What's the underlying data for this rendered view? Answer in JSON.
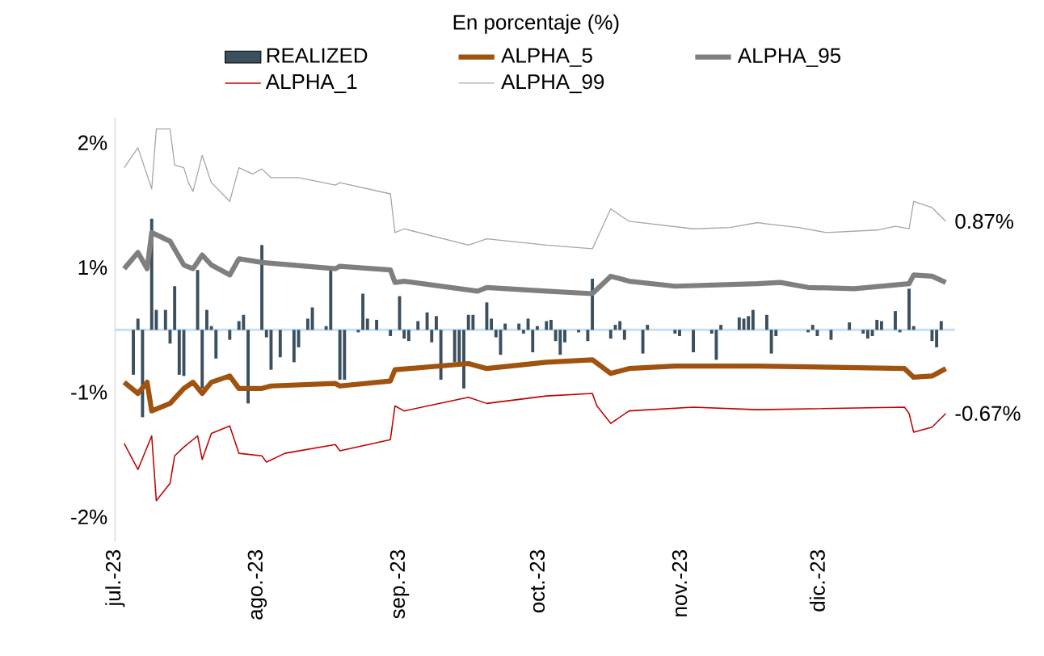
{
  "chart_data": {
    "type": "line",
    "title": "En porcentaje (%)",
    "xlim": [
      "2023-07-01",
      "2023-12-31"
    ],
    "xticks": [
      {
        "value": "2023-07-01",
        "label": "jul.-23"
      },
      {
        "value": "2023-08-01",
        "label": "ago.-23"
      },
      {
        "value": "2023-09-01",
        "label": "sep.-23"
      },
      {
        "value": "2023-10-01",
        "label": "oct.-23"
      },
      {
        "value": "2023-11-01",
        "label": "nov.-23"
      },
      {
        "value": "2023-12-01",
        "label": "dic.-23"
      }
    ],
    "ylim": [
      -1.7,
      1.7
    ],
    "ref_lines": [
      {
        "axis": "y",
        "value": 0,
        "color": "#c5e0f4"
      }
    ],
    "yticks": [
      {
        "value": 1.5,
        "label": "2%"
      },
      {
        "value": 0.5,
        "label": "1%"
      },
      {
        "value": -0.5,
        "label": "-1%"
      },
      {
        "value": -1.5,
        "label": "-2%"
      }
    ],
    "legend": "top",
    "series": [
      {
        "name": "REALIZED",
        "type": "bar",
        "color": "#3b4f5e",
        "x": [
          "2023-07-05",
          "2023-07-06",
          "2023-07-07",
          "2023-07-09",
          "2023-07-10",
          "2023-07-12",
          "2023-07-13",
          "2023-07-14",
          "2023-07-15",
          "2023-07-16",
          "2023-07-19",
          "2023-07-20",
          "2023-07-21",
          "2023-07-22",
          "2023-07-23",
          "2023-07-26",
          "2023-07-28",
          "2023-07-29",
          "2023-07-30",
          "2023-08-02",
          "2023-08-03",
          "2023-08-04",
          "2023-08-06",
          "2023-08-09",
          "2023-08-10",
          "2023-08-12",
          "2023-08-13",
          "2023-08-16",
          "2023-08-17",
          "2023-08-19",
          "2023-08-20",
          "2023-08-23",
          "2023-08-24",
          "2023-08-25",
          "2023-08-27",
          "2023-08-30",
          "2023-09-01",
          "2023-09-02",
          "2023-09-03",
          "2023-09-05",
          "2023-09-07",
          "2023-09-08",
          "2023-09-09",
          "2023-09-10",
          "2023-09-13",
          "2023-09-14",
          "2023-09-15",
          "2023-09-16",
          "2023-09-17",
          "2023-09-20",
          "2023-09-21",
          "2023-09-22",
          "2023-09-23",
          "2023-09-24",
          "2023-09-27",
          "2023-09-28",
          "2023-09-29",
          "2023-09-30",
          "2023-10-01",
          "2023-10-03",
          "2023-10-04",
          "2023-10-05",
          "2023-10-06",
          "2023-10-07",
          "2023-10-10",
          "2023-10-12",
          "2023-10-13",
          "2023-10-17",
          "2023-10-18",
          "2023-10-19",
          "2023-10-20",
          "2023-10-24",
          "2023-10-25",
          "2023-10-31",
          "2023-11-01",
          "2023-11-04",
          "2023-11-08",
          "2023-11-09",
          "2023-11-10",
          "2023-11-14",
          "2023-11-15",
          "2023-11-16",
          "2023-11-17",
          "2023-11-20",
          "2023-11-21",
          "2023-11-22",
          "2023-11-29",
          "2023-11-30",
          "2023-12-01",
          "2023-12-04",
          "2023-12-08",
          "2023-12-11",
          "2023-12-12",
          "2023-12-13",
          "2023-12-14",
          "2023-12-15",
          "2023-12-18",
          "2023-12-19",
          "2023-12-21",
          "2023-12-22",
          "2023-12-26",
          "2023-12-27",
          "2023-12-28"
        ],
        "values": [
          -0.36,
          0.09,
          -0.7,
          0.89,
          0.16,
          0.16,
          -0.11,
          0.35,
          -0.36,
          -0.37,
          0.48,
          -0.47,
          0.16,
          0.03,
          -0.23,
          -0.08,
          0.07,
          0.12,
          -0.59,
          0.68,
          -0.06,
          -0.32,
          -0.22,
          -0.26,
          -0.14,
          0.09,
          0.18,
          0.03,
          0.48,
          -0.4,
          -0.4,
          -0.02,
          0.29,
          0.09,
          0.08,
          -0.05,
          0.27,
          -0.07,
          -0.09,
          0.07,
          0.14,
          -0.1,
          0.11,
          -0.4,
          -0.26,
          -0.27,
          -0.47,
          0.12,
          0.12,
          0.22,
          0.09,
          -0.06,
          -0.2,
          0.05,
          0.05,
          -0.03,
          0.09,
          -0.18,
          0.03,
          0.07,
          0.08,
          -0.09,
          -0.2,
          -0.1,
          -0.02,
          -0.09,
          0.41,
          -0.07,
          0.04,
          0.07,
          -0.08,
          -0.19,
          0.04,
          -0.03,
          -0.05,
          -0.18,
          -0.03,
          -0.24,
          0.04,
          0.1,
          0.09,
          0.11,
          0.16,
          0.12,
          -0.19,
          -0.05,
          -0.02,
          0.04,
          -0.05,
          -0.08,
          0.06,
          -0.03,
          -0.07,
          -0.05,
          0.08,
          0.07,
          0.15,
          -0.02,
          0.33,
          0.03,
          -0.09,
          -0.14,
          0.07
        ]
      },
      {
        "name": "ALPHA_5",
        "color": "#a0520f",
        "x": [
          "2023-07-03",
          "2023-07-06",
          "2023-07-08",
          "2023-07-09",
          "2023-07-13",
          "2023-07-16",
          "2023-07-18",
          "2023-07-20",
          "2023-07-22",
          "2023-07-26",
          "2023-07-28",
          "2023-08-02",
          "2023-08-04",
          "2023-08-18",
          "2023-08-19",
          "2023-08-30",
          "2023-08-31",
          "2023-09-16",
          "2023-09-20",
          "2023-10-03",
          "2023-10-13",
          "2023-10-17",
          "2023-10-21",
          "2023-10-31",
          "2023-11-18",
          "2023-12-20",
          "2023-12-22",
          "2023-12-26",
          "2023-12-29"
        ],
        "values": [
          -0.42,
          -0.51,
          -0.42,
          -0.65,
          -0.59,
          -0.47,
          -0.42,
          -0.51,
          -0.42,
          -0.37,
          -0.47,
          -0.47,
          -0.45,
          -0.43,
          -0.45,
          -0.41,
          -0.32,
          -0.27,
          -0.31,
          -0.26,
          -0.24,
          -0.35,
          -0.31,
          -0.29,
          -0.29,
          -0.31,
          -0.38,
          -0.37,
          -0.31
        ]
      },
      {
        "name": "ALPHA_95",
        "color": "#7f7f7f",
        "x": [
          "2023-07-03",
          "2023-07-06",
          "2023-07-08",
          "2023-07-09",
          "2023-07-13",
          "2023-07-16",
          "2023-07-18",
          "2023-07-20",
          "2023-07-22",
          "2023-07-26",
          "2023-07-28",
          "2023-08-02",
          "2023-08-18",
          "2023-08-19",
          "2023-08-30",
          "2023-08-31",
          "2023-09-02",
          "2023-09-18",
          "2023-09-20",
          "2023-10-03",
          "2023-10-13",
          "2023-10-17",
          "2023-10-21",
          "2023-10-31",
          "2023-11-18",
          "2023-11-23",
          "2023-11-29",
          "2023-12-09",
          "2023-12-21",
          "2023-12-22",
          "2023-12-26",
          "2023-12-29"
        ],
        "values": [
          0.49,
          0.62,
          0.49,
          0.78,
          0.71,
          0.52,
          0.49,
          0.6,
          0.52,
          0.44,
          0.57,
          0.54,
          0.49,
          0.51,
          0.48,
          0.38,
          0.39,
          0.31,
          0.34,
          0.31,
          0.29,
          0.43,
          0.39,
          0.35,
          0.37,
          0.38,
          0.34,
          0.33,
          0.37,
          0.44,
          0.43,
          0.38
        ]
      },
      {
        "name": "ALPHA_1",
        "color": "#c00000",
        "x": [
          "2023-07-03",
          "2023-07-06",
          "2023-07-09",
          "2023-07-10",
          "2023-07-13",
          "2023-07-14",
          "2023-07-16",
          "2023-07-19",
          "2023-07-20",
          "2023-07-22",
          "2023-07-26",
          "2023-07-28",
          "2023-08-02",
          "2023-08-03",
          "2023-08-07",
          "2023-08-18",
          "2023-08-19",
          "2023-08-30",
          "2023-08-31",
          "2023-09-02",
          "2023-09-16",
          "2023-09-20",
          "2023-10-03",
          "2023-10-13",
          "2023-10-14",
          "2023-10-17",
          "2023-10-21",
          "2023-11-04",
          "2023-11-18",
          "2023-12-20",
          "2023-12-21",
          "2023-12-22",
          "2023-12-26",
          "2023-12-29"
        ],
        "values": [
          -0.91,
          -1.12,
          -0.85,
          -1.37,
          -1.23,
          -1.01,
          -0.94,
          -0.85,
          -1.04,
          -0.83,
          -0.77,
          -0.99,
          -1.01,
          -1.06,
          -0.99,
          -0.92,
          -0.97,
          -0.88,
          -0.61,
          -0.65,
          -0.54,
          -0.59,
          -0.53,
          -0.51,
          -0.61,
          -0.75,
          -0.65,
          -0.62,
          -0.64,
          -0.62,
          -0.67,
          -0.82,
          -0.78,
          -0.67
        ]
      },
      {
        "name": "ALPHA_99",
        "color": "#a6a6a6",
        "x": [
          "2023-07-03",
          "2023-07-06",
          "2023-07-09",
          "2023-07-10",
          "2023-07-13",
          "2023-07-14",
          "2023-07-16",
          "2023-07-17",
          "2023-07-18",
          "2023-07-20",
          "2023-07-22",
          "2023-07-26",
          "2023-07-28",
          "2023-07-31",
          "2023-08-02",
          "2023-08-04",
          "2023-08-10",
          "2023-08-18",
          "2023-08-19",
          "2023-08-30",
          "2023-08-31",
          "2023-09-02",
          "2023-09-16",
          "2023-09-20",
          "2023-10-03",
          "2023-10-13",
          "2023-10-15",
          "2023-10-17",
          "2023-10-21",
          "2023-11-04",
          "2023-11-12",
          "2023-11-18",
          "2023-11-20",
          "2023-11-27",
          "2023-12-03",
          "2023-12-14",
          "2023-12-18",
          "2023-12-21",
          "2023-12-22",
          "2023-12-26",
          "2023-12-29"
        ],
        "values": [
          1.3,
          1.46,
          1.13,
          1.61,
          1.61,
          1.32,
          1.3,
          1.18,
          1.11,
          1.4,
          1.18,
          1.03,
          1.3,
          1.25,
          1.29,
          1.22,
          1.22,
          1.16,
          1.18,
          1.09,
          0.78,
          0.81,
          0.68,
          0.73,
          0.68,
          0.65,
          0.81,
          0.97,
          0.87,
          0.81,
          0.82,
          0.86,
          0.85,
          0.82,
          0.78,
          0.8,
          0.83,
          0.81,
          1.03,
          0.98,
          0.87
        ]
      }
    ],
    "annotations": [
      {
        "text": "0.87%",
        "x": "2023-12-29",
        "y": 0.87
      },
      {
        "text": "-0.67%",
        "x": "2023-12-29",
        "y": -0.67
      }
    ]
  }
}
